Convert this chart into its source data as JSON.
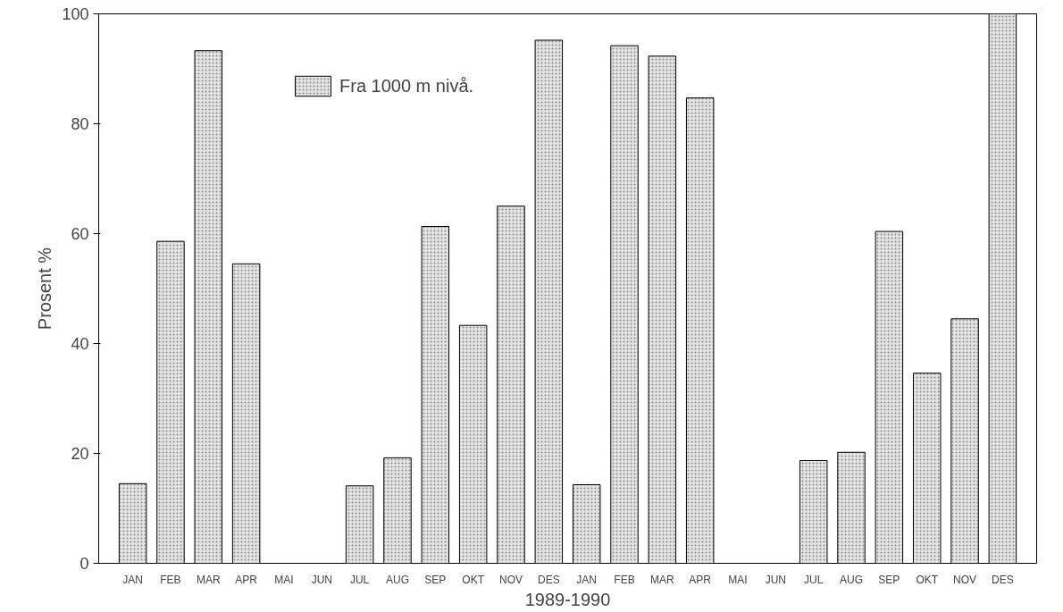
{
  "chart_data": {
    "type": "bar",
    "xlabel": "1989-1990",
    "ylabel": "Prosent %",
    "categories": [
      "JAN",
      "FEB",
      "MAR",
      "APR",
      "MAI",
      "JUN",
      "JUL",
      "AUG",
      "SEP",
      "OKT",
      "NOV",
      "DES",
      "JAN",
      "FEB",
      "MAR",
      "APR",
      "MAI",
      "JUN",
      "JUL",
      "AUG",
      "SEP",
      "OKT",
      "NOV",
      "DES"
    ],
    "series": [
      {
        "name": "Fra 1000 m nivå.",
        "color": "#e4e4e4",
        "values": [
          14.5,
          58.6,
          93.3,
          54.5,
          null,
          null,
          14.1,
          19.2,
          61.3,
          43.3,
          65,
          95.2,
          14.3,
          94.2,
          92.3,
          84.7,
          null,
          null,
          18.7,
          20.2,
          60.4,
          34.6,
          44.5,
          100
        ]
      }
    ],
    "ylim": [
      0,
      100
    ],
    "yticks": [
      0,
      20,
      40,
      60,
      80,
      100
    ],
    "grid": false,
    "legend": "top left"
  }
}
